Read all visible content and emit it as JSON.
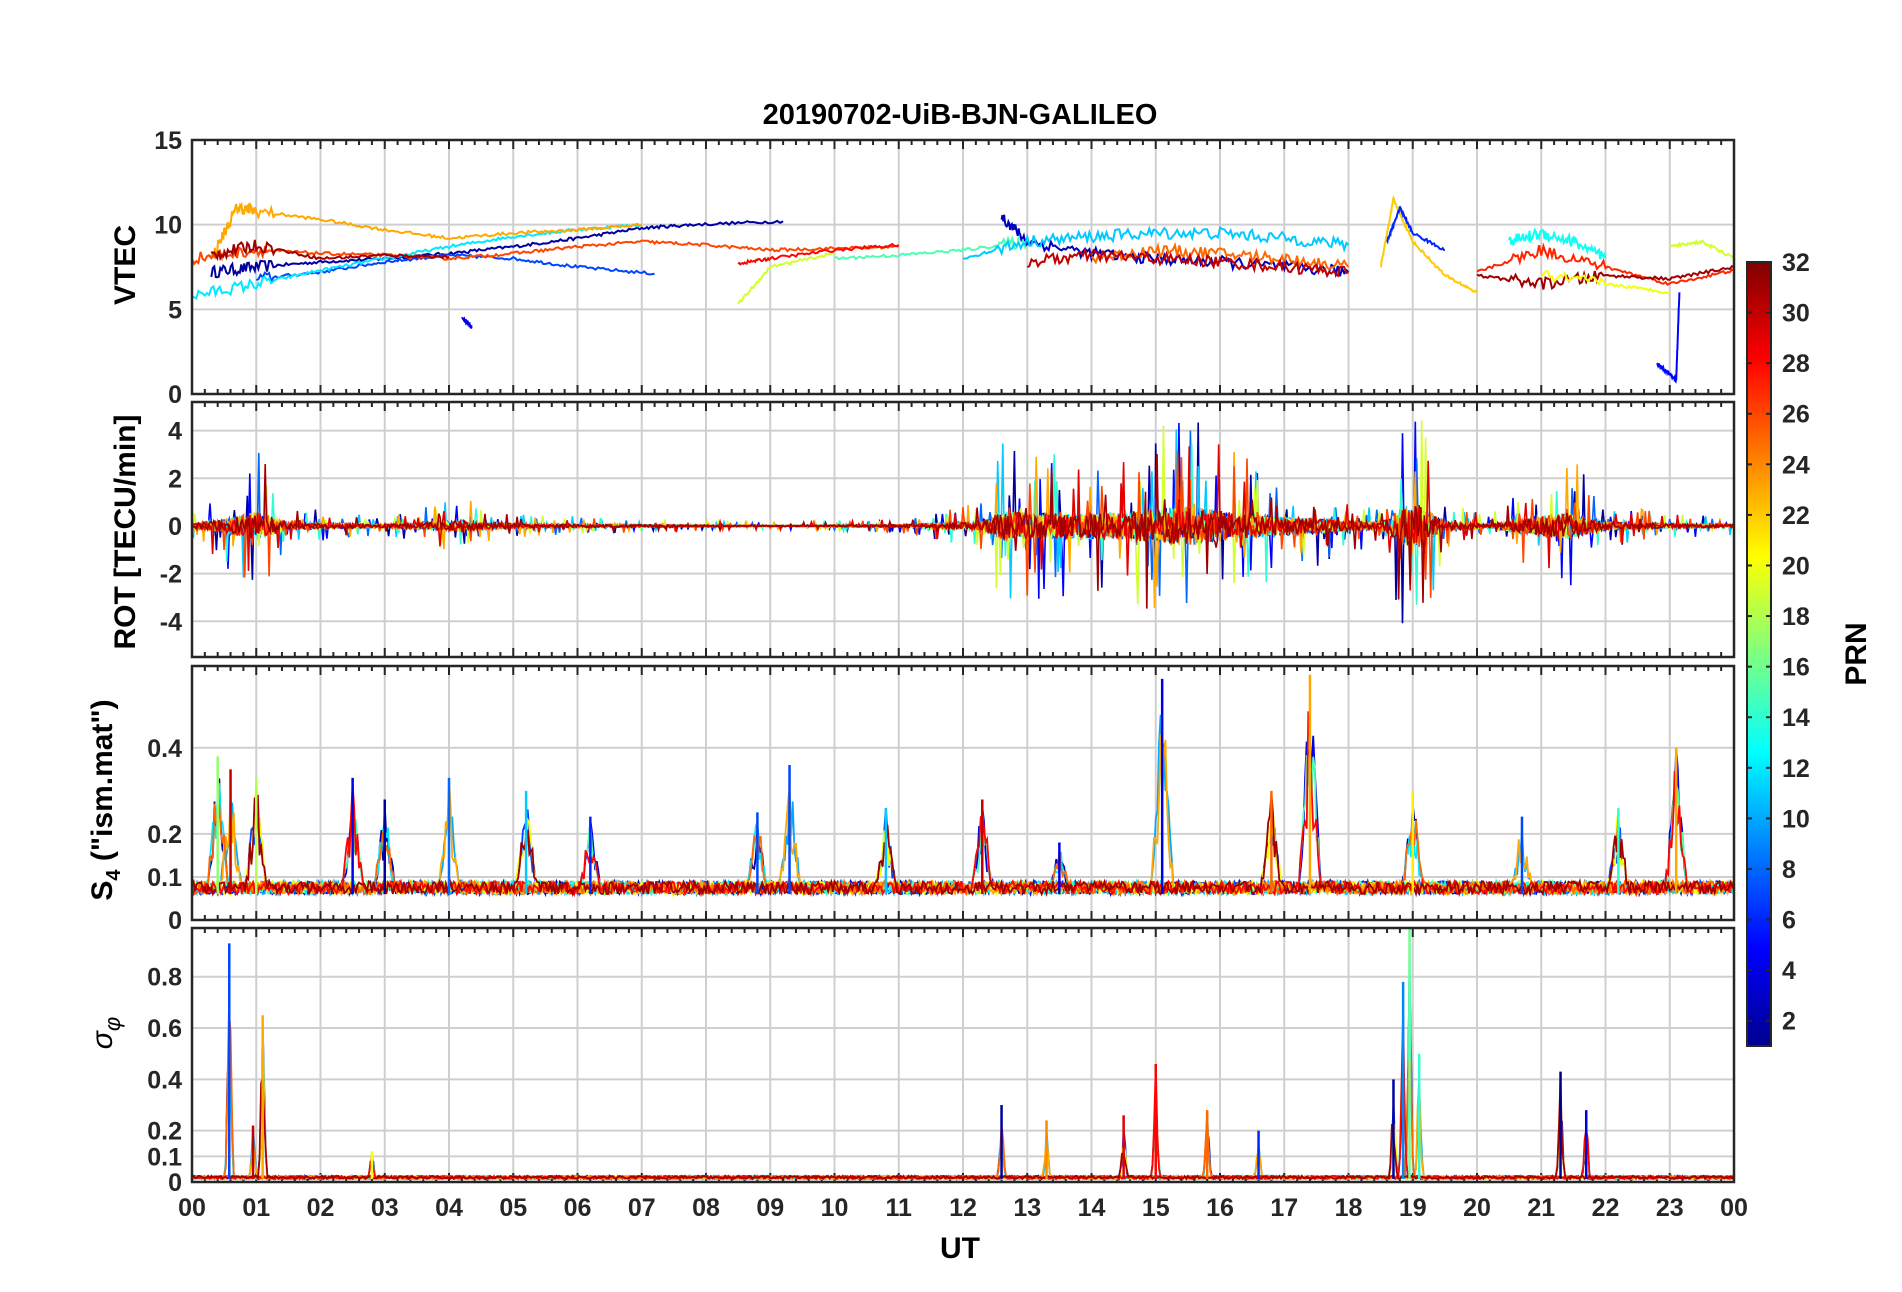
{
  "figure_title": "20190702-UiB-BJN-GALILEO",
  "chart_data": [
    {
      "type": "line",
      "panel": "vtec",
      "title": "20190702-UiB-BJN-GALILEO",
      "ylabel": "VTEC",
      "ylim": [
        0,
        15
      ],
      "yticks": [
        "0",
        "5",
        "10",
        "15"
      ],
      "xlim": [
        0,
        24
      ],
      "grid": true,
      "series": [
        {
          "prn": 2,
          "x": [
            0.3,
            1,
            2,
            3,
            4,
            5,
            6,
            7,
            7.8,
            9.2
          ],
          "y": [
            7.2,
            7.5,
            7.8,
            8.0,
            8.3,
            8.7,
            9.2,
            9.8,
            10.0,
            10.2
          ]
        },
        {
          "prn": 4,
          "x": [
            4.2,
            4.3,
            4.35
          ],
          "y": [
            4.5,
            4.2,
            3.9
          ]
        },
        {
          "prn": 7,
          "x": [
            1,
            2,
            3,
            4,
            5,
            6,
            7.2
          ],
          "y": [
            6.8,
            7.2,
            7.8,
            8.2,
            8.0,
            7.5,
            7.1
          ]
        },
        {
          "prn": 12,
          "x": [
            0,
            1,
            2,
            3,
            4,
            5,
            6,
            7
          ],
          "y": [
            5.8,
            6.5,
            7.3,
            8.0,
            8.7,
            9.3,
            9.7,
            10.0
          ]
        },
        {
          "prn": 23,
          "x": [
            0.3,
            0.7,
            1,
            2,
            3,
            4,
            5,
            6,
            7
          ],
          "y": [
            8.0,
            11.0,
            10.8,
            10.3,
            9.7,
            9.2,
            9.5,
            9.7,
            10.0
          ]
        },
        {
          "prn": 26,
          "x": [
            0,
            1,
            2,
            3,
            4,
            5,
            6,
            7,
            8,
            9,
            10,
            11
          ],
          "y": [
            8.0,
            8.5,
            8.3,
            8.2,
            8.0,
            8.3,
            8.7,
            9.0,
            8.8,
            8.5,
            8.6,
            8.7
          ]
        },
        {
          "prn": 31,
          "x": [
            0.3,
            1,
            2,
            3,
            4
          ],
          "y": [
            8.2,
            8.8,
            8.0,
            8.2,
            8.1
          ]
        },
        {
          "prn": 19,
          "x": [
            8.5,
            9,
            10
          ],
          "y": [
            5.3,
            7.5,
            8.3
          ]
        },
        {
          "prn": 28,
          "x": [
            8.5,
            9,
            10,
            11
          ],
          "y": [
            7.7,
            8.0,
            8.5,
            8.8
          ]
        },
        {
          "prn": 15,
          "x": [
            10,
            11,
            12,
            13
          ],
          "y": [
            8.0,
            8.2,
            8.5,
            9.0
          ]
        },
        {
          "prn": 3,
          "x": [
            12.6,
            13,
            14,
            15,
            16,
            17,
            18
          ],
          "y": [
            10.5,
            9.0,
            8.3,
            8.0,
            7.8,
            7.5,
            7.2
          ]
        },
        {
          "prn": 11,
          "x": [
            12,
            13,
            14,
            15,
            16,
            17,
            18
          ],
          "y": [
            8.0,
            9.0,
            9.3,
            9.5,
            9.5,
            9.2,
            8.8
          ]
        },
        {
          "prn": 25,
          "x": [
            14,
            15,
            16,
            17,
            18
          ],
          "y": [
            8.0,
            8.5,
            8.3,
            8.0,
            7.5
          ]
        },
        {
          "prn": 30,
          "x": [
            13,
            14,
            15,
            16,
            17,
            18
          ],
          "y": [
            7.8,
            8.2,
            8.0,
            7.8,
            7.5,
            7.2
          ]
        },
        {
          "prn": 22,
          "x": [
            18.5,
            18.7,
            19,
            19.5,
            20
          ],
          "y": [
            7.5,
            11.5,
            9.0,
            7.0,
            6.0
          ]
        },
        {
          "prn": 6,
          "x": [
            18.6,
            18.8,
            19,
            19.5
          ],
          "y": [
            9.0,
            11.0,
            9.5,
            8.5
          ]
        },
        {
          "prn": 13,
          "x": [
            20.5,
            21,
            21.5,
            22
          ],
          "y": [
            9.0,
            9.5,
            9.0,
            8.0
          ]
        },
        {
          "prn": 27,
          "x": [
            20,
            21,
            22,
            23,
            24
          ],
          "y": [
            7.2,
            8.5,
            7.5,
            6.5,
            7.3
          ]
        },
        {
          "prn": 31,
          "x": [
            20,
            21,
            22,
            23,
            24
          ],
          "y": [
            7.0,
            6.5,
            7.0,
            6.8,
            7.5
          ]
        },
        {
          "prn": 20,
          "x": [
            21,
            22,
            23
          ],
          "y": [
            7.0,
            6.5,
            6.0
          ]
        },
        {
          "prn": 5,
          "x": [
            22.8,
            23,
            23.1,
            23.15
          ],
          "y": [
            1.8,
            1.2,
            0.8,
            6.0
          ]
        },
        {
          "prn": 19,
          "x": [
            23,
            23.5,
            24
          ],
          "y": [
            8.7,
            9.0,
            8.0
          ]
        }
      ]
    },
    {
      "type": "line",
      "panel": "rot",
      "ylabel": "ROT [TECU/min]",
      "ylim": [
        -5.5,
        5.2
      ],
      "yticks": [
        "-4",
        "-2",
        "0",
        "2",
        "4"
      ],
      "xlim": [
        0,
        24
      ],
      "grid": true,
      "activity_envelope": [
        {
          "x": 0,
          "amp": 0.5
        },
        {
          "x": 0.5,
          "amp": 1.6
        },
        {
          "x": 1.0,
          "amp": 3.5
        },
        {
          "x": 1.5,
          "amp": 0.8
        },
        {
          "x": 3,
          "amp": 0.4
        },
        {
          "x": 4.2,
          "amp": 1.2
        },
        {
          "x": 5,
          "amp": 0.5
        },
        {
          "x": 7,
          "amp": 0.3
        },
        {
          "x": 9,
          "amp": 0.15
        },
        {
          "x": 11,
          "amp": 0.3
        },
        {
          "x": 12.3,
          "amp": 1.0
        },
        {
          "x": 12.6,
          "amp": 3.5
        },
        {
          "x": 13.5,
          "amp": 3.0
        },
        {
          "x": 14.5,
          "amp": 3.2
        },
        {
          "x": 15.2,
          "amp": 4.5
        },
        {
          "x": 15.5,
          "amp": 4.8
        },
        {
          "x": 16.3,
          "amp": 3.0
        },
        {
          "x": 17.5,
          "amp": 1.8
        },
        {
          "x": 18.5,
          "amp": 0.8
        },
        {
          "x": 18.8,
          "amp": 4.0
        },
        {
          "x": 19.1,
          "amp": 5.0
        },
        {
          "x": 19.5,
          "amp": 1.0
        },
        {
          "x": 20.2,
          "amp": 0.4
        },
        {
          "x": 20.8,
          "amp": 2.0
        },
        {
          "x": 21.4,
          "amp": 3.2
        },
        {
          "x": 22.0,
          "amp": 1.0
        },
        {
          "x": 23,
          "amp": 0.5
        },
        {
          "x": 24,
          "amp": 0.4
        }
      ]
    },
    {
      "type": "line",
      "panel": "s4",
      "ylabel": "S4 (\"ism.mat\")",
      "ylim": [
        0,
        0.59
      ],
      "yticks": [
        "0",
        "0.1",
        "0.2",
        "0.4"
      ],
      "xlim": [
        0,
        24
      ],
      "grid": true,
      "peaks": [
        {
          "x": 0.4,
          "y": 0.38
        },
        {
          "x": 0.6,
          "y": 0.35
        },
        {
          "x": 1.0,
          "y": 0.33
        },
        {
          "x": 2.5,
          "y": 0.33
        },
        {
          "x": 3.0,
          "y": 0.28
        },
        {
          "x": 4.0,
          "y": 0.33
        },
        {
          "x": 5.2,
          "y": 0.3
        },
        {
          "x": 6.2,
          "y": 0.24
        },
        {
          "x": 8.8,
          "y": 0.25
        },
        {
          "x": 9.3,
          "y": 0.36
        },
        {
          "x": 10.8,
          "y": 0.26
        },
        {
          "x": 12.3,
          "y": 0.28
        },
        {
          "x": 13.5,
          "y": 0.18
        },
        {
          "x": 15.1,
          "y": 0.56
        },
        {
          "x": 16.8,
          "y": 0.3
        },
        {
          "x": 17.4,
          "y": 0.57
        },
        {
          "x": 19.0,
          "y": 0.3
        },
        {
          "x": 20.7,
          "y": 0.24
        },
        {
          "x": 22.2,
          "y": 0.26
        },
        {
          "x": 23.1,
          "y": 0.4
        }
      ]
    },
    {
      "type": "line",
      "panel": "sigma_phi",
      "ylabel": "σφ",
      "ylim": [
        0,
        0.99
      ],
      "yticks": [
        "0",
        "0.1",
        "0.2",
        "0.4",
        "0.6",
        "0.8"
      ],
      "xlim": [
        0,
        24
      ],
      "xlabel": "UT",
      "xticks": [
        "00",
        "01",
        "02",
        "03",
        "04",
        "05",
        "06",
        "07",
        "08",
        "09",
        "10",
        "11",
        "12",
        "13",
        "14",
        "15",
        "16",
        "17",
        "18",
        "19",
        "20",
        "21",
        "22",
        "23",
        "00"
      ],
      "grid": true,
      "peaks": [
        {
          "x": 0.58,
          "y": 0.93
        },
        {
          "x": 0.95,
          "y": 0.22
        },
        {
          "x": 1.1,
          "y": 0.65
        },
        {
          "x": 2.8,
          "y": 0.12
        },
        {
          "x": 12.6,
          "y": 0.3
        },
        {
          "x": 13.3,
          "y": 0.24
        },
        {
          "x": 14.5,
          "y": 0.26
        },
        {
          "x": 15.0,
          "y": 0.46
        },
        {
          "x": 15.8,
          "y": 0.28
        },
        {
          "x": 16.6,
          "y": 0.2
        },
        {
          "x": 18.7,
          "y": 0.4
        },
        {
          "x": 18.85,
          "y": 0.78
        },
        {
          "x": 18.95,
          "y": 0.99
        },
        {
          "x": 19.1,
          "y": 0.5
        },
        {
          "x": 21.3,
          "y": 0.43
        },
        {
          "x": 21.7,
          "y": 0.28
        }
      ]
    }
  ],
  "colorbar": {
    "label": "PRN",
    "ticks": [
      "2",
      "4",
      "6",
      "8",
      "10",
      "12",
      "14",
      "16",
      "18",
      "20",
      "22",
      "24",
      "26",
      "28",
      "30",
      "32"
    ],
    "range": [
      1,
      32
    ],
    "colormap": "jet"
  }
}
